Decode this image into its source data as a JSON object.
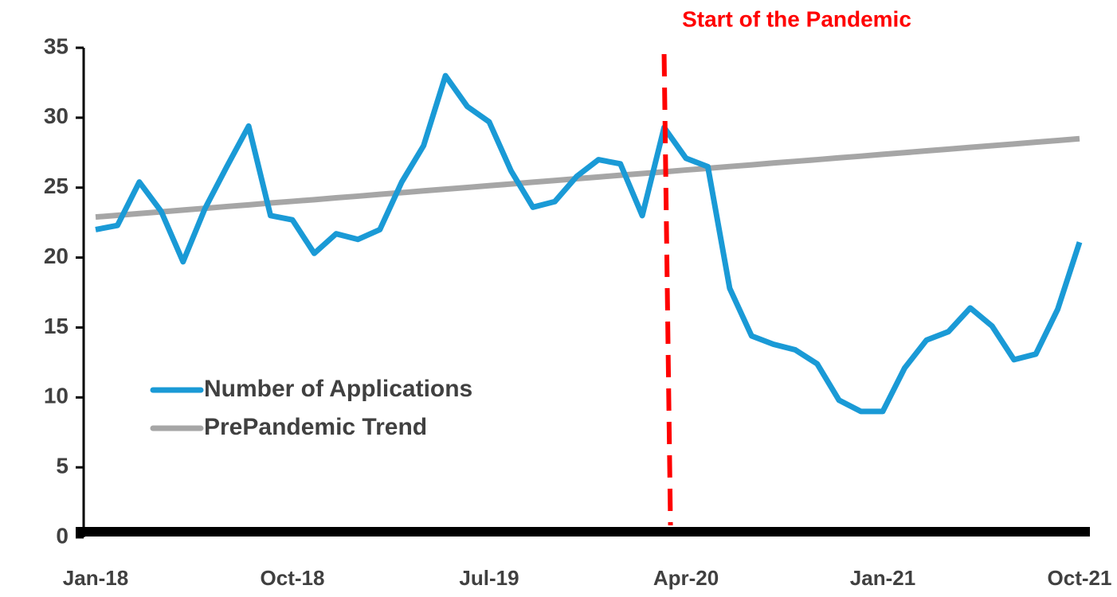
{
  "chart_data": {
    "type": "line",
    "categories": [
      "Jan-18",
      null,
      null,
      null,
      null,
      null,
      null,
      null,
      null,
      "Oct-18",
      null,
      null,
      null,
      null,
      null,
      null,
      null,
      null,
      "Jul-19",
      null,
      null,
      null,
      null,
      null,
      null,
      null,
      null,
      "Apr-20",
      null,
      null,
      null,
      null,
      null,
      null,
      null,
      null,
      "Jan-21",
      null,
      null,
      null,
      null,
      null,
      null,
      null,
      null,
      "Oct-21"
    ],
    "series": [
      {
        "name": "Number of Applications",
        "color": "#1a9ad6",
        "values": [
          22.0,
          22.3,
          25.4,
          23.3,
          19.7,
          23.5,
          26.5,
          29.4,
          23.0,
          22.7,
          20.3,
          21.7,
          21.3,
          22.0,
          25.4,
          28.0,
          33.0,
          30.8,
          29.7,
          26.2,
          23.6,
          24.0,
          25.8,
          27.0,
          26.7,
          23.0,
          29.3,
          27.1,
          26.5,
          17.8,
          14.4,
          13.8,
          13.4,
          12.4,
          9.8,
          9.0,
          9.0,
          12.1,
          14.1,
          14.7,
          16.4,
          15.1,
          12.7,
          13.1,
          16.3,
          21.1
        ]
      },
      {
        "name": "PrePandemic Trend",
        "color": "#a6a6a6",
        "values": [
          22.9,
          23.02,
          23.15,
          23.27,
          23.4,
          23.52,
          23.65,
          23.77,
          23.9,
          24.02,
          24.14,
          24.27,
          24.39,
          24.52,
          24.64,
          24.77,
          24.89,
          25.01,
          25.14,
          25.26,
          25.39,
          25.51,
          25.64,
          25.76,
          25.89,
          26.01,
          26.13,
          26.26,
          26.38,
          26.51,
          26.63,
          26.76,
          26.88,
          27.0,
          27.13,
          27.25,
          27.38,
          27.5,
          27.63,
          27.75,
          27.88,
          28.0,
          28.12,
          28.25,
          28.37,
          28.5
        ]
      }
    ],
    "ylim": [
      0,
      35
    ],
    "yticks": [
      0,
      5,
      10,
      15,
      20,
      25,
      30,
      35
    ],
    "grid": false,
    "annotations": [
      {
        "text": "Start of the Pandemic",
        "x_index": 26,
        "color": "#ff0000"
      }
    ]
  }
}
